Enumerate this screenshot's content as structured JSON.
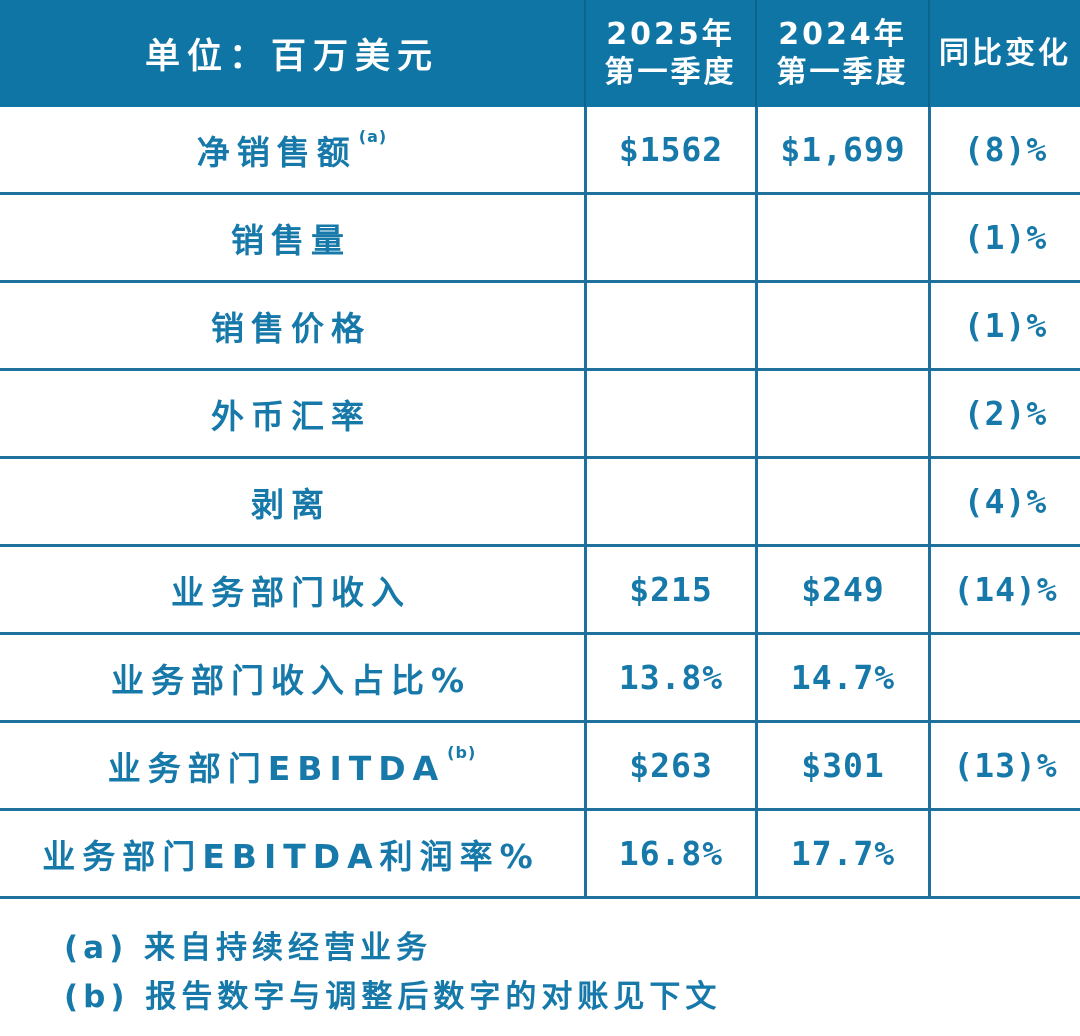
{
  "colors": {
    "header_bg": "#0e75a5",
    "grid_line": "#1e719d",
    "text": "#1679a9",
    "header_text": "#ffffff"
  },
  "table": {
    "header": {
      "unit_label": "单位：百万美元",
      "col_2025": "2025年\n第一季度",
      "col_2024": "2024年\n第一季度",
      "col_yoy": "同比变化"
    },
    "rows": [
      {
        "label": "净销售额",
        "sup": "(a)",
        "q1_2025": "$1562",
        "q1_2024": "$1,699",
        "yoy": "(8)%"
      },
      {
        "label": "销售量",
        "sup": "",
        "q1_2025": "",
        "q1_2024": "",
        "yoy": "(1)%"
      },
      {
        "label": "销售价格",
        "sup": "",
        "q1_2025": "",
        "q1_2024": "",
        "yoy": "(1)%"
      },
      {
        "label": "外币汇率",
        "sup": "",
        "q1_2025": "",
        "q1_2024": "",
        "yoy": "(2)%"
      },
      {
        "label": "剥离",
        "sup": "",
        "q1_2025": "",
        "q1_2024": "",
        "yoy": "(4)%"
      },
      {
        "label": "业务部门收入",
        "sup": "",
        "q1_2025": "$215",
        "q1_2024": "$249",
        "yoy": "(14)%"
      },
      {
        "label": "业务部门收入占比%",
        "sup": "",
        "q1_2025": "13.8%",
        "q1_2024": "14.7%",
        "yoy": ""
      },
      {
        "label": "业务部门EBITDA",
        "sup": "(b)",
        "q1_2025": "$263",
        "q1_2024": "$301",
        "yoy": "(13)%"
      },
      {
        "label": "业务部门EBITDA利润率%",
        "sup": "",
        "q1_2025": "16.8%",
        "q1_2024": "17.7%",
        "yoy": ""
      }
    ]
  },
  "footnotes": [
    "(a) 来自持续经营业务",
    "(b) 报告数字与调整后数字的对账见下文"
  ]
}
